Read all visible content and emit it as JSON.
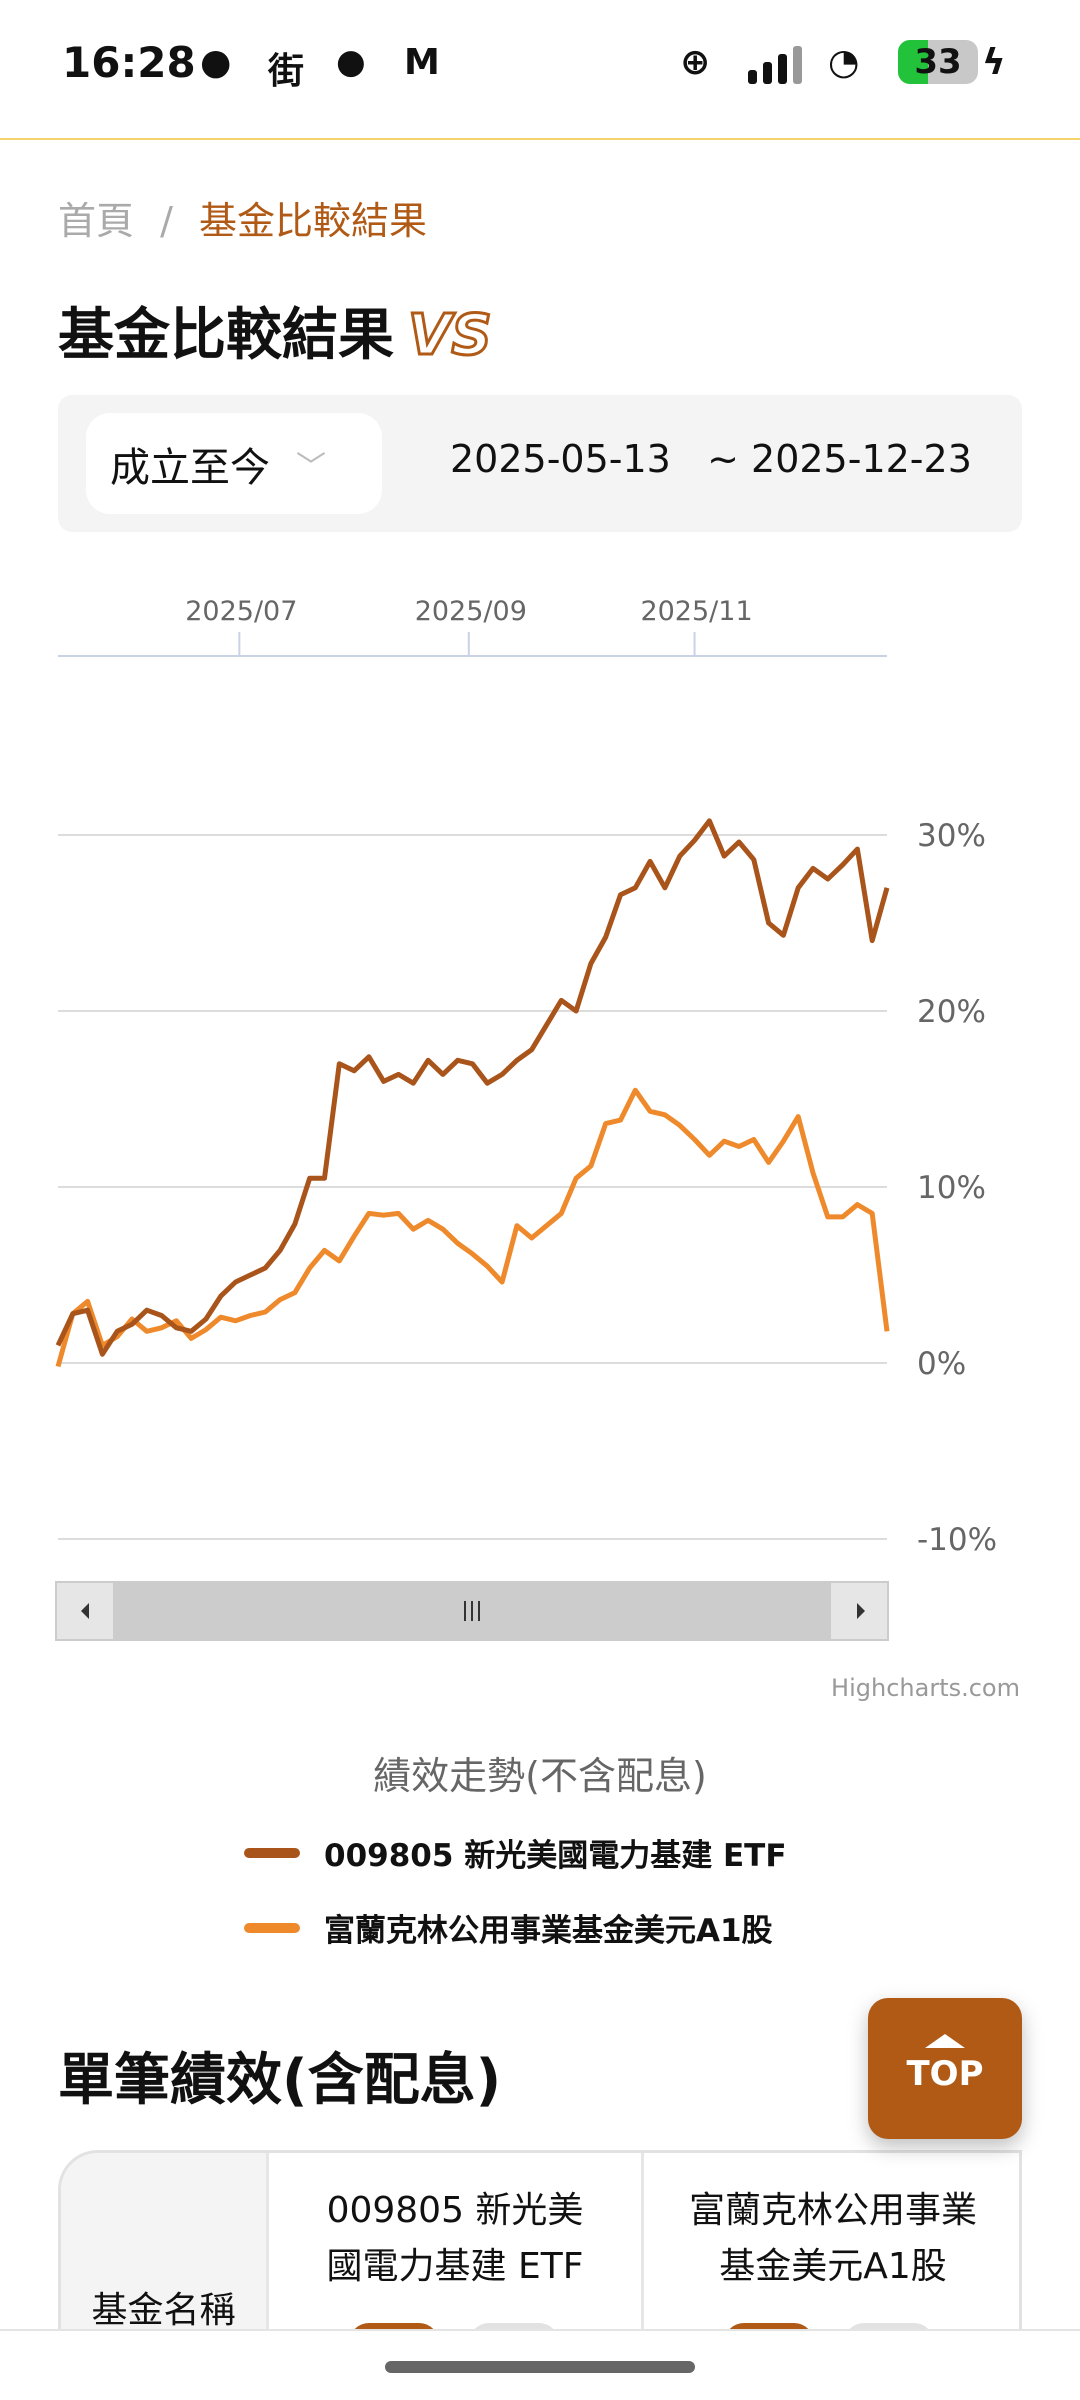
{
  "status_bar": {
    "time": "16:28",
    "battery": "33",
    "icons": [
      "chat-bubble-icon",
      "jie-app-icon",
      "line-icon",
      "gmail-icon",
      "data-saver-icon",
      "signal-icon",
      "wifi-icon",
      "charging-icon"
    ]
  },
  "breadcrumb": {
    "home": "首頁",
    "separator": "/",
    "current": "基金比較結果"
  },
  "page_title": "基金比較結果",
  "title_badge": "VS",
  "filter": {
    "range_label": "成立至今",
    "start_date": "2025-05-13",
    "separator": "~",
    "end_date": "2025-12-23"
  },
  "colors": {
    "accent": "#b05a16",
    "series1": "#a9541a",
    "series2": "#ef8a2c"
  },
  "chart_data": {
    "type": "line",
    "title": "績效走勢(不含配息)",
    "x_start": "2025-05-13",
    "x_step_days": 4,
    "x_ticks": [
      "2025/07",
      "2025/09",
      "2025/11"
    ],
    "y_ticks": [
      "30%",
      "20%",
      "10%",
      "0%",
      "-10%"
    ],
    "ylim": [
      -10,
      30
    ],
    "credit": "Highcharts.com",
    "series": [
      {
        "name": "009805 新光美國電力基建 ETF",
        "values": [
          1.0,
          2.8,
          3.0,
          0.5,
          1.8,
          2.2,
          3.0,
          2.7,
          2.0,
          1.8,
          2.5,
          3.8,
          4.6,
          5.0,
          5.4,
          6.4,
          7.9,
          10.5,
          10.5,
          17.0,
          16.6,
          17.4,
          16.0,
          16.4,
          15.9,
          17.2,
          16.4,
          17.2,
          17.0,
          15.9,
          16.4,
          17.2,
          17.8,
          19.2,
          20.6,
          20.0,
          22.7,
          24.2,
          26.6,
          27.0,
          28.5,
          27.0,
          28.8,
          29.7,
          30.8,
          28.8,
          29.6,
          28.6,
          25.0,
          24.3,
          27.0,
          28.1,
          27.5,
          28.3,
          29.2,
          24.0,
          27.0
        ]
      },
      {
        "name": "富蘭克林公用事業基金美元A1股",
        "values": [
          -0.2,
          2.8,
          3.5,
          1.0,
          1.5,
          2.5,
          1.8,
          2.0,
          2.4,
          1.4,
          1.9,
          2.6,
          2.4,
          2.7,
          2.9,
          3.6,
          4.0,
          5.4,
          6.4,
          5.8,
          7.2,
          8.5,
          8.4,
          8.5,
          7.6,
          8.1,
          7.6,
          6.8,
          6.2,
          5.5,
          4.6,
          7.8,
          7.1,
          7.8,
          8.5,
          10.5,
          11.2,
          13.6,
          13.8,
          15.5,
          14.3,
          14.1,
          13.5,
          12.7,
          11.8,
          12.6,
          12.3,
          12.7,
          11.4,
          12.6,
          14.0,
          10.8,
          8.3,
          8.3,
          9.0,
          8.5,
          1.8
        ]
      }
    ]
  },
  "section_title": "單筆績效(含配息)",
  "table": {
    "row_header": "基金名稱",
    "funds": [
      "009805 新光美國電力基建 ETF",
      "富蘭克林公用事業基金美元A1股"
    ]
  },
  "top_button": "TOP"
}
